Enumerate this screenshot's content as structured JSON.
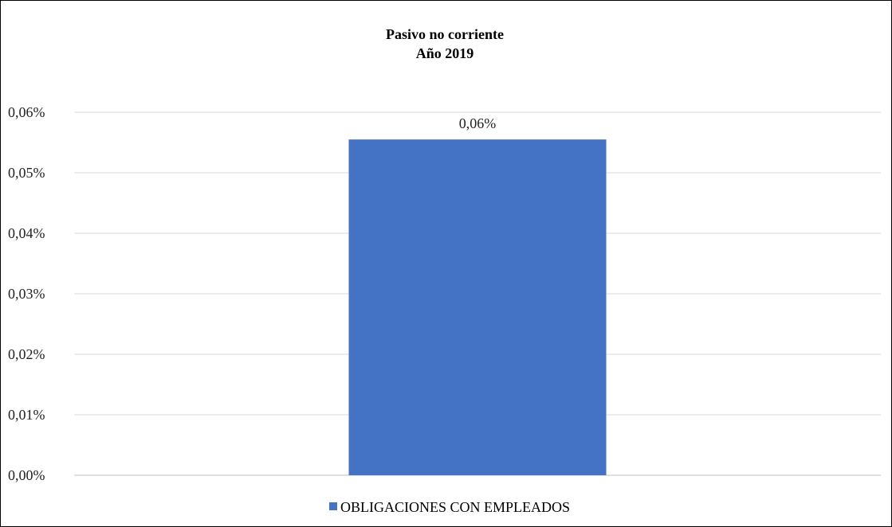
{
  "chart_data": {
    "type": "bar",
    "title": [
      "Pasivo no corriente",
      "Año 2019"
    ],
    "categories": [
      ""
    ],
    "series": [
      {
        "name": "OBLIGACIONES CON EMPLEADOS",
        "values": [
          0.0555
        ],
        "data_label": "0,06%"
      }
    ],
    "ylim": [
      0,
      0.06
    ],
    "yticks": [
      {
        "value": 0.0,
        "label": "0,00%"
      },
      {
        "value": 0.01,
        "label": "0,01%"
      },
      {
        "value": 0.02,
        "label": "0,02%"
      },
      {
        "value": 0.03,
        "label": "0,03%"
      },
      {
        "value": 0.04,
        "label": "0,04%"
      },
      {
        "value": 0.05,
        "label": "0,05%"
      },
      {
        "value": 0.06,
        "label": "0,06%"
      }
    ],
    "grid": true,
    "legend_position": "bottom",
    "colors": {
      "bar": "#4472C4",
      "grid": "#d9d9d9",
      "axis": "#bfbfbf"
    }
  }
}
